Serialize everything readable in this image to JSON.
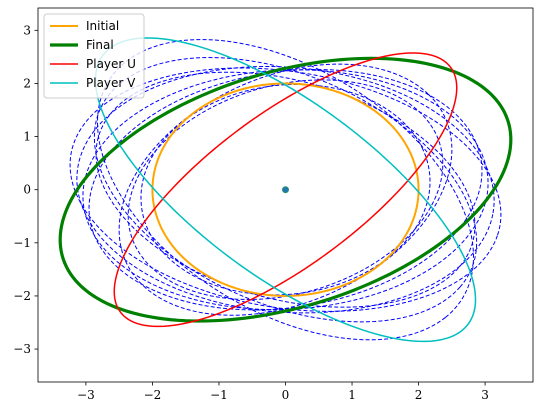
{
  "chart_data": {
    "type": "line",
    "title": "",
    "xlabel": "",
    "ylabel": "",
    "xlim": [
      -3.72,
      3.72
    ],
    "ylim": [
      -3.62,
      3.42
    ],
    "xticks": [
      -3,
      -2,
      -1,
      0,
      1,
      2,
      3
    ],
    "yticks": [
      -3,
      -2,
      -1,
      0,
      1,
      2,
      3
    ],
    "xtick_labels": [
      "−3",
      "−2",
      "−1",
      "0",
      "1",
      "2",
      "3"
    ],
    "ytick_labels": [
      "−3",
      "−2",
      "−1",
      "0",
      "1",
      "2",
      "3"
    ],
    "grid": false,
    "legend_position": "top-left",
    "center_marker": {
      "x": 0,
      "y": 0,
      "color": "#1f77b4"
    },
    "series": [
      {
        "name": "Initial",
        "shape": "ellipse",
        "cx": 0,
        "cy": 0,
        "a": 2,
        "b": 2,
        "angle_deg": 0,
        "color": "#FFA500",
        "style": "solid",
        "width": 2
      },
      {
        "name": "Final",
        "shape": "ellipse",
        "cx": 0,
        "cy": 0,
        "a": 3.6,
        "b": 2.15,
        "angle_deg": 25,
        "color": "#008000",
        "style": "solid",
        "width": 3.2
      },
      {
        "name": "Player U",
        "shape": "ellipse",
        "cx": 0,
        "cy": 0,
        "a": 3.4,
        "b": 1.3,
        "angle_deg": 45,
        "color": "#FF0000",
        "style": "solid",
        "width": 1.5
      },
      {
        "name": "Player V",
        "shape": "ellipse",
        "cx": 0,
        "cy": 0,
        "a": 3.75,
        "b": 1.5,
        "angle_deg": -45,
        "color": "#00BFBF",
        "style": "solid",
        "width": 1.5
      }
    ],
    "intermediate_ellipses": {
      "color": "#0000FF",
      "style": "dashed",
      "items": [
        {
          "cx": 0,
          "cy": 0,
          "a": 2.2,
          "b": 1.95,
          "angle_deg": 20
        },
        {
          "cx": 0,
          "cy": 0,
          "a": 2.5,
          "b": 1.9,
          "angle_deg": 30
        },
        {
          "cx": 0,
          "cy": 0,
          "a": 2.8,
          "b": 2.0,
          "angle_deg": 40
        },
        {
          "cx": 0,
          "cy": 0,
          "a": 3.0,
          "b": 2.0,
          "angle_deg": -25
        },
        {
          "cx": 0,
          "cy": 0,
          "a": 3.2,
          "b": 2.05,
          "angle_deg": -35
        },
        {
          "cx": 0,
          "cy": 0,
          "a": 3.4,
          "b": 2.1,
          "angle_deg": -45
        },
        {
          "cx": 0,
          "cy": 0,
          "a": 3.0,
          "b": 2.2,
          "angle_deg": 15
        },
        {
          "cx": 0,
          "cy": 0,
          "a": 3.3,
          "b": 2.2,
          "angle_deg": -15
        },
        {
          "cx": 0,
          "cy": 0,
          "a": 3.05,
          "b": 2.25,
          "angle_deg": 5
        },
        {
          "cx": 0,
          "cy": 0,
          "a": 3.15,
          "b": 2.3,
          "angle_deg": -8
        }
      ]
    }
  }
}
